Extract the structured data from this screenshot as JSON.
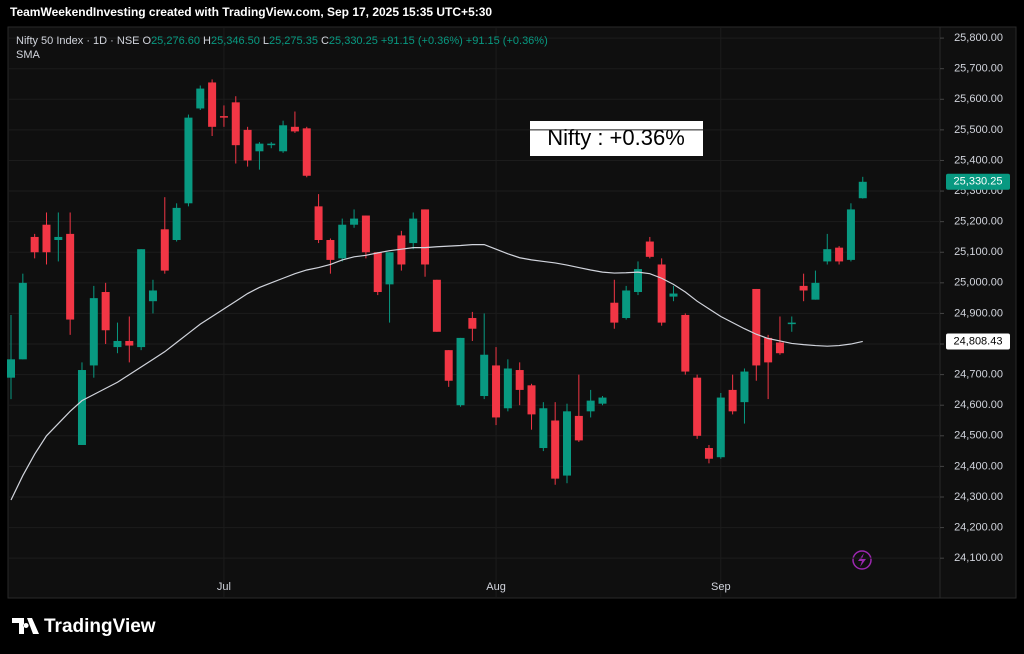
{
  "header": "TeamWeekendInvesting created with TradingView.com, Sep 17, 2025 15:35 UTC+5:30",
  "footer": "TradingView",
  "chart_data": {
    "type": "candlestick",
    "title": "Nifty 50 Index · 1D · NSE",
    "ohlc_legend": [
      {
        "key": "O",
        "value": "25,276.60"
      },
      {
        "key": "H",
        "value": "25,346.50"
      },
      {
        "key": "L",
        "value": "25,275.35"
      },
      {
        "key": "C",
        "value": "25,330.25"
      }
    ],
    "change_labels": [
      "+91.15 (+0.36%)",
      "+91.15 (+0.36%)"
    ],
    "annotation": "Nifty : +0.36%",
    "last_label": "25,330.25",
    "up_color": "#089981",
    "down_color": "#f23645",
    "categories": [
      null,
      null,
      null,
      null,
      null,
      null,
      null,
      null,
      null,
      null,
      null,
      null,
      null,
      null,
      null,
      null,
      null,
      null,
      "Jul",
      null,
      null,
      null,
      null,
      null,
      null,
      null,
      null,
      null,
      null,
      null,
      null,
      null,
      null,
      null,
      null,
      null,
      null,
      null,
      null,
      null,
      null,
      "Aug",
      null,
      null,
      null,
      null,
      null,
      null,
      null,
      null,
      null,
      null,
      null,
      null,
      null,
      null,
      null,
      null,
      null,
      null,
      "Sep",
      null,
      null,
      null,
      null,
      null,
      null,
      null,
      null,
      null,
      null,
      null,
      null
    ],
    "open": [
      24690,
      24750,
      25150,
      25190,
      25140,
      25160,
      24470,
      24730,
      24970,
      24790,
      24810,
      24790,
      24940,
      25175,
      25140,
      25260,
      25570,
      25655,
      25545,
      25590,
      25500,
      25430,
      25450,
      25430,
      25510,
      25505,
      25250,
      25140,
      25080,
      25190,
      25220,
      25100,
      24995,
      25155,
      25130,
      25240,
      25010,
      24780,
      24600,
      24885,
      24630,
      24730,
      24590,
      24715,
      24665,
      24460,
      24550,
      24370,
      24565,
      24580,
      24605,
      24935,
      24885,
      24970,
      25135,
      25060,
      24955,
      24895,
      24690,
      24460,
      24430,
      24650,
      24610,
      24980,
      24820,
      24805,
      24865,
      24990,
      24945,
      25070,
      25115,
      25075,
      25276.6
    ],
    "high": [
      24895,
      25030,
      25160,
      25230,
      25230,
      25230,
      24740,
      24990,
      25000,
      24870,
      24890,
      25110,
      25010,
      25280,
      25260,
      25550,
      25645,
      25665,
      25580,
      25610,
      25510,
      25460,
      25460,
      25530,
      25560,
      25510,
      25290,
      25145,
      25210,
      25240,
      25220,
      25100,
      25100,
      25170,
      25230,
      25240,
      25010,
      24780,
      24820,
      24905,
      24900,
      24790,
      24750,
      24740,
      24670,
      24610,
      24610,
      24605,
      24700,
      24650,
      24630,
      25010,
      24990,
      25070,
      25150,
      25080,
      24990,
      24900,
      24700,
      24470,
      24640,
      24700,
      24720,
      24980,
      24830,
      24890,
      24890,
      25030,
      25040,
      25160,
      25120,
      25260,
      25346.5
    ],
    "low": [
      24620,
      24750,
      25080,
      25060,
      25070,
      24830,
      24470,
      24690,
      24800,
      24770,
      24740,
      24780,
      24900,
      25030,
      25135,
      25250,
      25565,
      25480,
      25510,
      25390,
      25380,
      25370,
      25440,
      25425,
      25490,
      25345,
      25130,
      25030,
      25070,
      25180,
      25080,
      24960,
      24870,
      25040,
      25110,
      25020,
      24840,
      24660,
      24595,
      24810,
      24620,
      24535,
      24580,
      24600,
      24520,
      24450,
      24340,
      24345,
      24480,
      24560,
      24600,
      24850,
      24880,
      24960,
      25080,
      24860,
      24940,
      24700,
      24490,
      24410,
      24425,
      24570,
      24540,
      24680,
      24620,
      24765,
      24840,
      24940,
      24945,
      25060,
      25060,
      25070,
      25275.35
    ],
    "close": [
      24750,
      25000,
      25100,
      25100,
      25150,
      24880,
      24715,
      24950,
      24845,
      24810,
      24795,
      25110,
      24975,
      25040,
      25245,
      25540,
      25635,
      25510,
      25540,
      25450,
      25400,
      25455,
      25455,
      25515,
      25495,
      25350,
      25140,
      25075,
      25190,
      25210,
      25100,
      24970,
      25100,
      25060,
      25210,
      25060,
      24840,
      24680,
      24820,
      24850,
      24765,
      24560,
      24720,
      24650,
      24570,
      24590,
      24360,
      24580,
      24485,
      24615,
      24625,
      24870,
      24975,
      25045,
      25085,
      24870,
      24965,
      24710,
      24500,
      24425,
      24625,
      24580,
      24710,
      24730,
      24740,
      24770,
      24870,
      24975,
      25000,
      25110,
      25070,
      25240,
      25330.25
    ],
    "series": [
      {
        "name": "SMA",
        "color": "#d1d4dc",
        "last_label": "24,808.43",
        "values": [
          24290,
          24370,
          24440,
          24500,
          24540,
          24580,
          24615,
          24635,
          24655,
          24675,
          24700,
          24725,
          24750,
          24775,
          24805,
          24835,
          24865,
          24890,
          24915,
          24940,
          24965,
          24985,
          25000,
          25015,
          25030,
          25042,
          25050,
          25060,
          25075,
          25085,
          25090,
          25098,
          25105,
          25110,
          25115,
          25115,
          25118,
          25120,
          25122,
          25125,
          25125,
          25110,
          25095,
          25082,
          25075,
          25070,
          25065,
          25058,
          25050,
          25042,
          25035,
          25032,
          25033,
          25035,
          25030,
          25015,
          24995,
          24970,
          24940,
          24915,
          24890,
          24870,
          24850,
          24832,
          24818,
          24810,
          24802,
          24798,
          24795,
          24793,
          24795,
          24800,
          24808.43
        ]
      }
    ],
    "ylim": [
      24045,
      25833
    ],
    "yticks": [
      {
        "value": 24100,
        "label": "24,100.00"
      },
      {
        "value": 24200,
        "label": "24,200.00"
      },
      {
        "value": 24300,
        "label": "24,300.00"
      },
      {
        "value": 24400,
        "label": "24,400.00"
      },
      {
        "value": 24500,
        "label": "24,500.00"
      },
      {
        "value": 24600,
        "label": "24,600.00"
      },
      {
        "value": 24700,
        "label": "24,700.00"
      },
      {
        "value": 24800,
        "label": "24,800.00"
      },
      {
        "value": 24900,
        "label": "24,900.00"
      },
      {
        "value": 25000,
        "label": "25,000.00"
      },
      {
        "value": 25100,
        "label": "25,100.00"
      },
      {
        "value": 25200,
        "label": "25,200.00"
      },
      {
        "value": 25300,
        "label": "25,300.00"
      },
      {
        "value": 25400,
        "label": "25,400.00"
      },
      {
        "value": 25500,
        "label": "25,500.00"
      },
      {
        "value": 25600,
        "label": "25,600.00"
      },
      {
        "value": 25700,
        "label": "25,700.00"
      },
      {
        "value": 25800,
        "label": "25,800.00"
      }
    ],
    "grid": true
  }
}
